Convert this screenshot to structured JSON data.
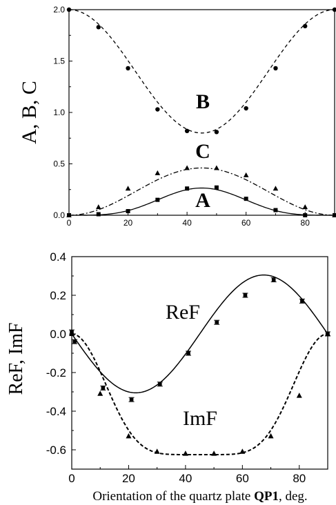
{
  "chart_data": [
    {
      "type": "scatter",
      "title": "",
      "xlabel": "",
      "ylabel": "A, B, C",
      "xlim": [
        0,
        90
      ],
      "ylim": [
        0,
        2.0
      ],
      "x_ticks": [
        "0",
        "20",
        "40",
        "60",
        "80"
      ],
      "y_ticks": [
        "0.0",
        "0.5",
        "1.0",
        "1.5",
        "2.0"
      ],
      "grid": false,
      "series": [
        {
          "name": "B",
          "marker": "circle",
          "line": "dashed",
          "points": [
            [
              0,
              2.0
            ],
            [
              10,
              1.83
            ],
            [
              20,
              1.43
            ],
            [
              30,
              1.03
            ],
            [
              40,
              0.82
            ],
            [
              50,
              0.81
            ],
            [
              60,
              1.04
            ],
            [
              70,
              1.43
            ],
            [
              80,
              1.84
            ],
            [
              90,
              2.0
            ]
          ],
          "fit": "1 + cos(4x)*0.6"
        },
        {
          "name": "C",
          "marker": "triangle",
          "line": "dashdot",
          "points": [
            [
              0,
              0.0
            ],
            [
              10,
              0.08
            ],
            [
              20,
              0.26
            ],
            [
              30,
              0.41
            ],
            [
              40,
              0.46
            ],
            [
              50,
              0.46
            ],
            [
              60,
              0.39
            ],
            [
              70,
              0.26
            ],
            [
              80,
              0.08
            ],
            [
              90,
              0.0
            ]
          ]
        },
        {
          "name": "A",
          "marker": "square",
          "line": "solid",
          "points": [
            [
              0,
              0.0
            ],
            [
              10,
              0.01
            ],
            [
              20,
              0.04
            ],
            [
              30,
              0.15
            ],
            [
              40,
              0.26
            ],
            [
              50,
              0.27
            ],
            [
              60,
              0.16
            ],
            [
              70,
              0.05
            ],
            [
              80,
              0.0
            ],
            [
              90,
              0.0
            ]
          ]
        }
      ]
    },
    {
      "type": "scatter",
      "title": "",
      "xlabel_prefix": "Orientation of the quartz plate ",
      "xlabel_bold": "QP1",
      "xlabel_suffix": ", deg.",
      "ylabel": "ReF, ImF",
      "xlim": [
        0,
        90
      ],
      "ylim": [
        -0.7,
        0.4
      ],
      "x_ticks": [
        "0",
        "20",
        "40",
        "60",
        "80"
      ],
      "y_ticks": [
        "0.4",
        "0.2",
        "0.0",
        "-0.2",
        "-0.4",
        "-0.6"
      ],
      "grid": false,
      "series": [
        {
          "name": "ReF",
          "marker": "square-errorbar",
          "line": "solid",
          "points": [
            [
              0,
              0.01
            ],
            [
              1,
              -0.04
            ],
            [
              11,
              -0.28
            ],
            [
              21,
              -0.34
            ],
            [
              31,
              -0.26
            ],
            [
              41,
              -0.1
            ],
            [
              51,
              0.06
            ],
            [
              61,
              0.2
            ],
            [
              71,
              0.28
            ],
            [
              81,
              0.17
            ],
            [
              90,
              0.0
            ]
          ]
        },
        {
          "name": "ImF",
          "marker": "triangle",
          "line": "dashed",
          "points": [
            [
              0,
              0.0
            ],
            [
              10,
              -0.31
            ],
            [
              20,
              -0.53
            ],
            [
              30,
              -0.61
            ],
            [
              40,
              -0.62
            ],
            [
              50,
              -0.62
            ],
            [
              60,
              -0.61
            ],
            [
              70,
              -0.53
            ],
            [
              80,
              -0.32
            ],
            [
              90,
              0.0
            ]
          ]
        }
      ]
    }
  ]
}
